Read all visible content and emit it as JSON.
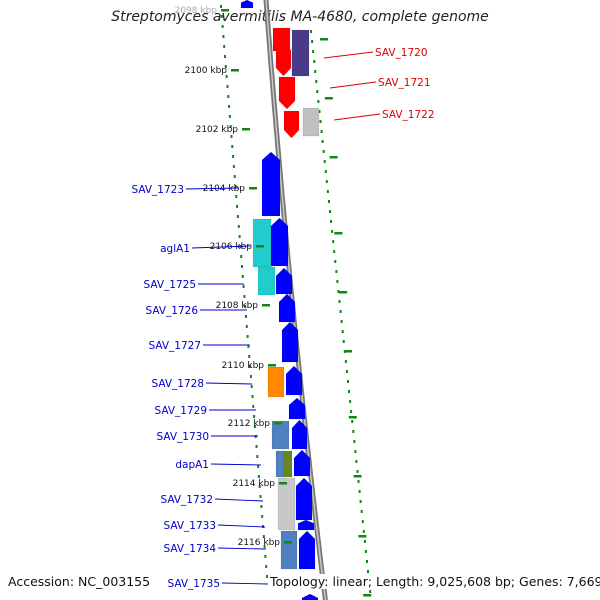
{
  "title": "Streptomyces avermitilis MA-4680, complete genome",
  "footer": {
    "accession_label": "Accession:",
    "accession": "NC_003155",
    "topology_label": "Topology:",
    "topology": "linear;",
    "length_label": "Length:",
    "length": "9,025,608 bp;",
    "genes_label": "Genes:",
    "genes": "7,669"
  },
  "ticks": [
    {
      "label": "2098 kbp",
      "kbp": 2098
    },
    {
      "label": "2100 kbp",
      "kbp": 2100
    },
    {
      "label": "2102 kbp",
      "kbp": 2102
    },
    {
      "label": "2104 kbp",
      "kbp": 2104
    },
    {
      "label": "2106 kbp",
      "kbp": 2106
    },
    {
      "label": "2108 kbp",
      "kbp": 2108
    },
    {
      "label": "2110 kbp",
      "kbp": 2110
    },
    {
      "label": "2112 kbp",
      "kbp": 2112
    },
    {
      "label": "2114 kbp",
      "kbp": 2114
    },
    {
      "label": "2116 kbp",
      "kbp": 2116
    }
  ],
  "genes_right": [
    {
      "label": "SAV_1720",
      "color": "#dd0000"
    },
    {
      "label": "SAV_1721",
      "color": "#dd0000"
    },
    {
      "label": "SAV_1722",
      "color": "#dd0000"
    }
  ],
  "genes_left": [
    {
      "label": "SAV_1723"
    },
    {
      "label": "aglA1"
    },
    {
      "label": "SAV_1725"
    },
    {
      "label": "SAV_1726"
    },
    {
      "label": "SAV_1727"
    },
    {
      "label": "SAV_1728"
    },
    {
      "label": "SAV_1729"
    },
    {
      "label": "SAV_1730"
    },
    {
      "label": "dapA1"
    },
    {
      "label": "SAV_1732"
    },
    {
      "label": "SAV_1733"
    },
    {
      "label": "SAV_1734"
    },
    {
      "label": "SAV_1735"
    }
  ],
  "colors": {
    "forward_gene": "#dd0000",
    "reverse_gene": "#0000e0",
    "backbone": "#888888",
    "gc_dots": "#118811",
    "label_blue": "#0000cc",
    "label_red": "#dd0000",
    "tick_text": "#111111"
  }
}
